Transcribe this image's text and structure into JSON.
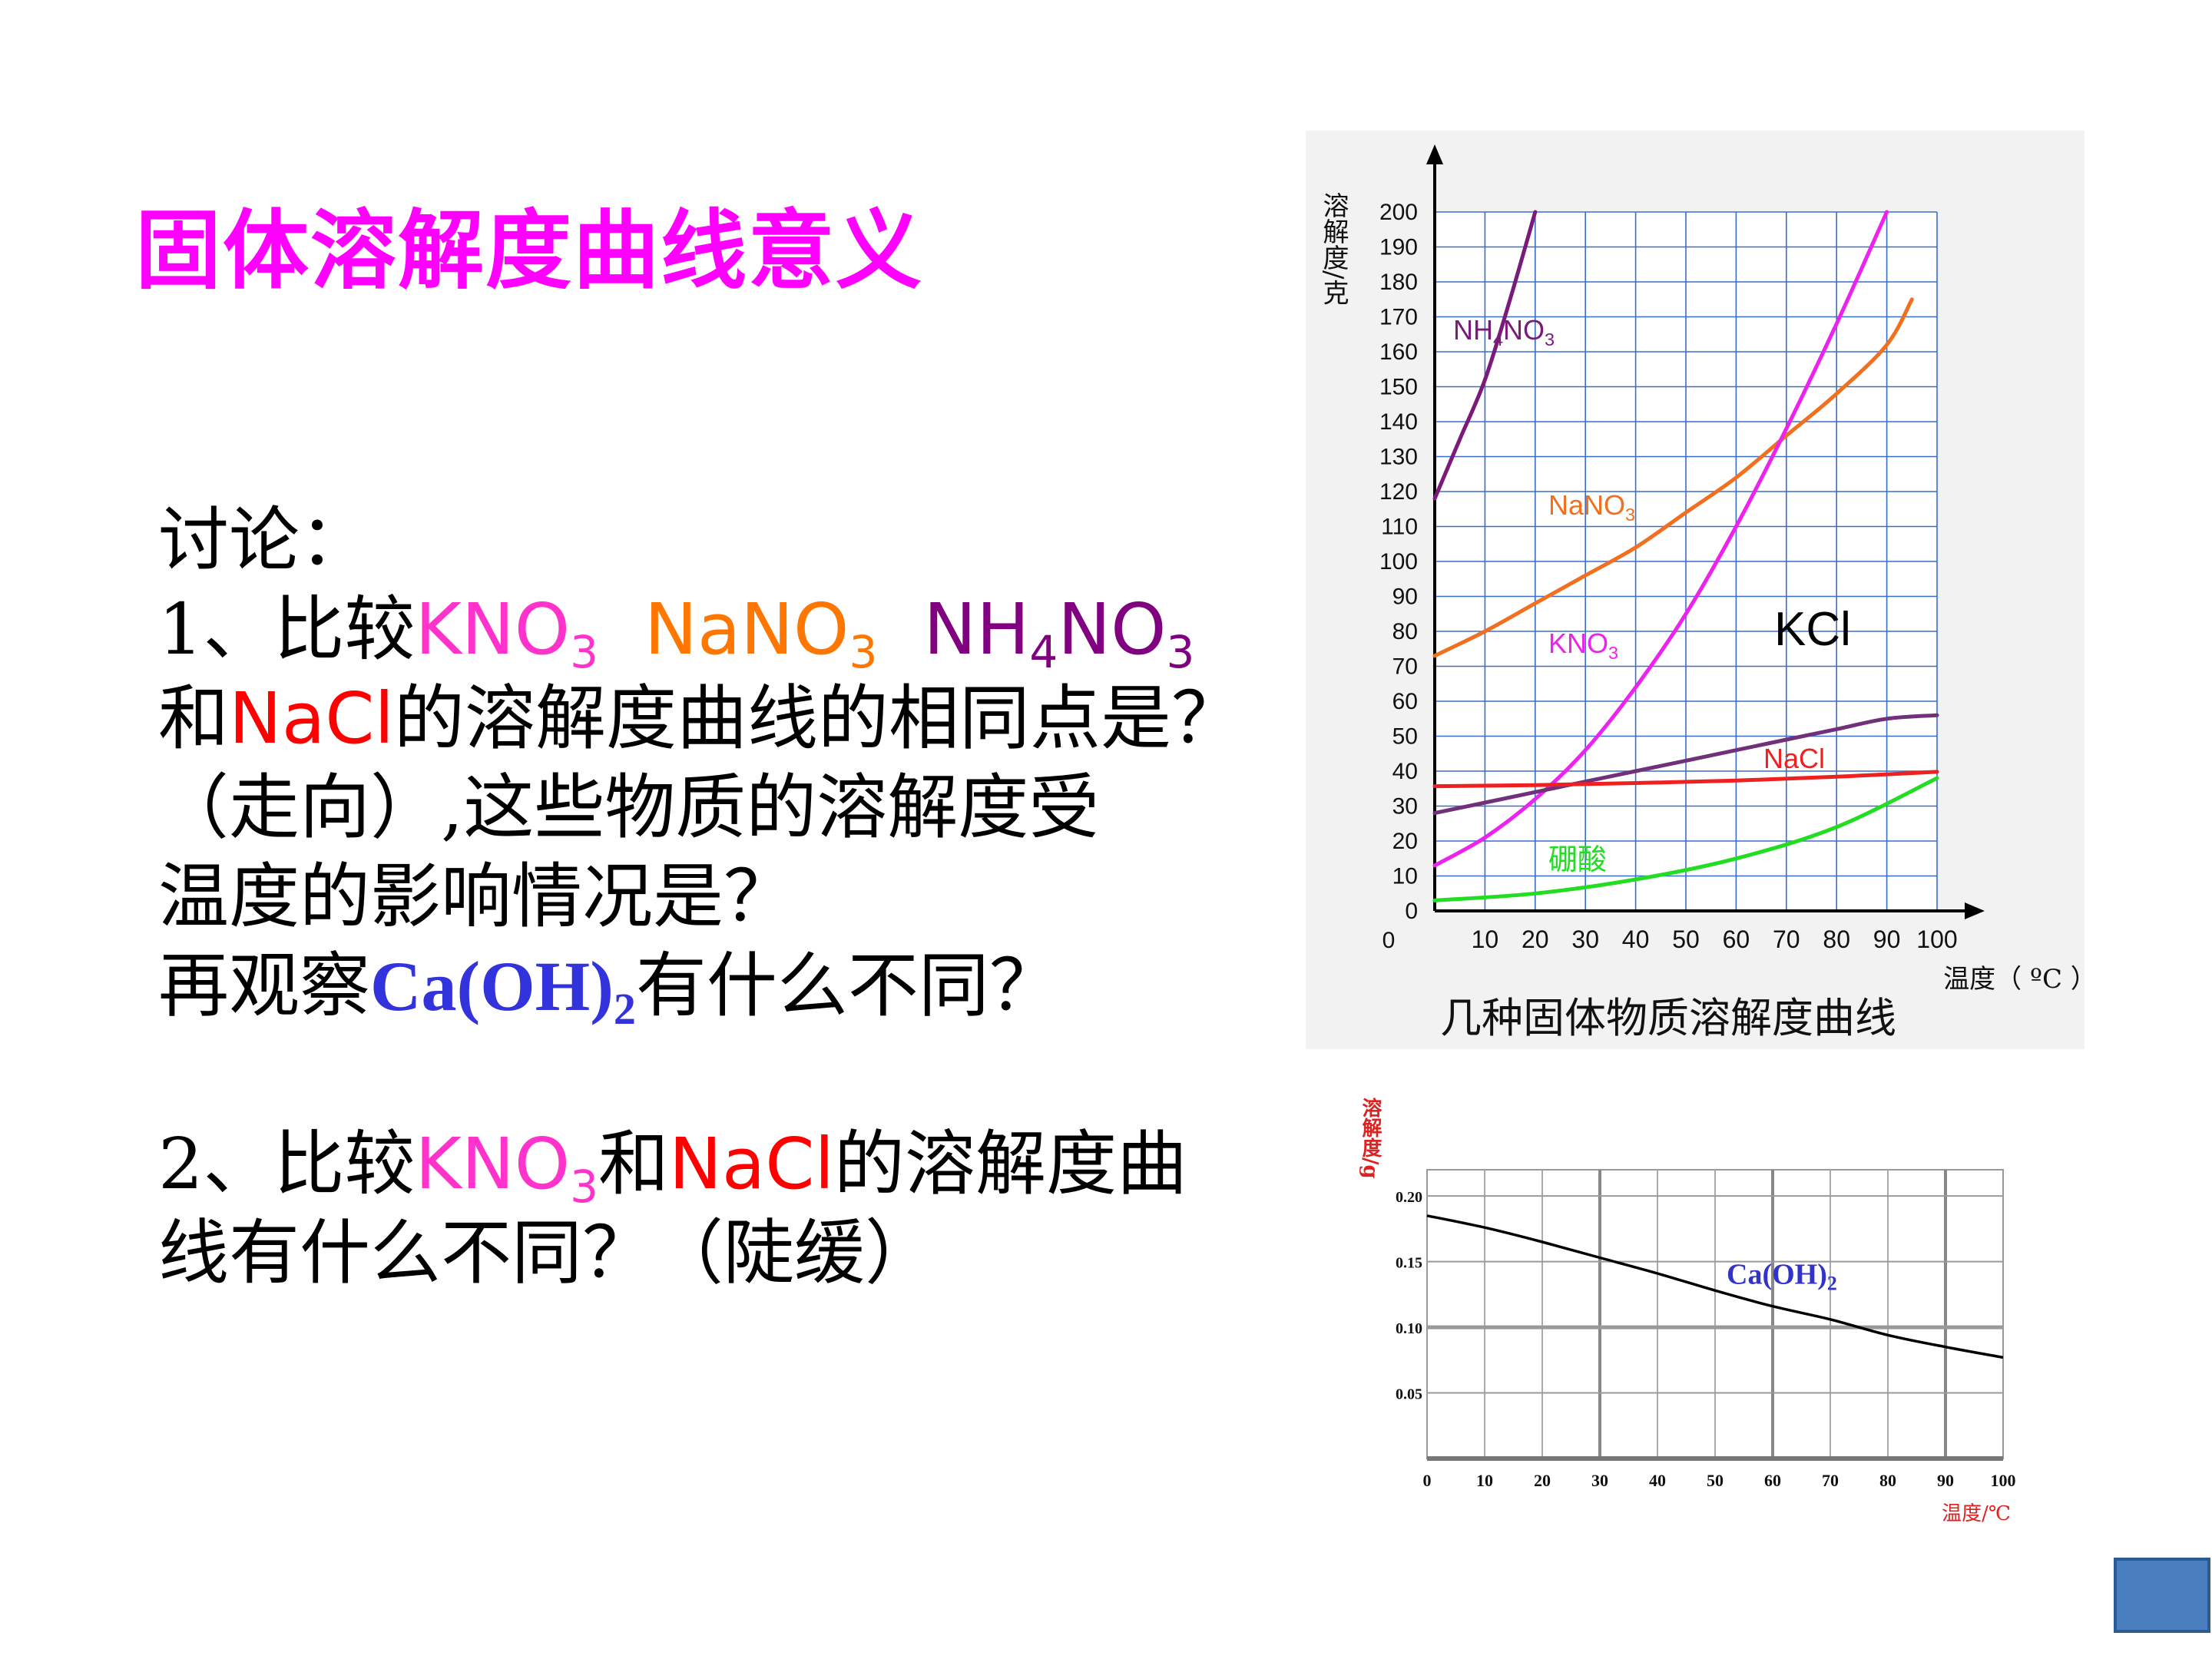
{
  "slide": {
    "title": "固体溶解度曲线意义",
    "discussion": {
      "heading": "讨论：",
      "q1_prefix": "1、比较",
      "q1_kno3": "KNO",
      "q1_nano3": "NaNO",
      "q1_nh4no3_a": "NH",
      "q1_nh4no3_b": "NO",
      "sub3": "3",
      "sub4": "4",
      "sub2": "2",
      "q1_and": "和",
      "q1_nacl": "NaCl",
      "q1_rest1": "的溶解度曲线的相同点是？",
      "q1_rest2": "（走向）,这些物质的溶解度受",
      "q1_rest3": "温度的影响情况是？",
      "q1_obs_prefix": "再观察",
      "q1_caoh": "Ca(OH)",
      "q1_obs_suffix": "有什么不同？",
      "q2_prefix": "2、比较",
      "q2_kno3": "KNO",
      "q2_and": "和",
      "q2_nacl": "NaCl",
      "q2_rest1": "的溶解度曲",
      "q2_rest2": "线有什么不同？（陡缓）"
    }
  },
  "chart_data": [
    {
      "type": "line",
      "title": "几种固体物质溶解度曲线",
      "ylabel": "溶解度/克",
      "xlabel": "温度（ ºC ）",
      "xlim": [
        0,
        100
      ],
      "ylim": [
        0,
        200
      ],
      "x_ticks": [
        10,
        20,
        30,
        40,
        50,
        60,
        70,
        80,
        90,
        100
      ],
      "x_tick_labels": [
        "10",
        "20",
        "30",
        "40",
        "50",
        "60",
        "70",
        "80",
        "90",
        "100"
      ],
      "y_ticks": [
        0,
        10,
        20,
        30,
        40,
        50,
        60,
        70,
        80,
        90,
        100,
        110,
        120,
        130,
        140,
        150,
        160,
        170,
        180,
        190,
        200
      ],
      "y_tick_labels": [
        "0",
        "10",
        "20",
        "30",
        "40",
        "50",
        "60",
        "70",
        "80",
        "90",
        "100",
        "110",
        "120",
        "130",
        "140",
        "150",
        "160",
        "170",
        "180",
        "190",
        "200"
      ],
      "grid": true,
      "series": [
        {
          "name": "NH4NO3",
          "label": "NH",
          "label_sub": "4",
          "label_b": "NO",
          "label_sub2": "3",
          "color": "#7a1a7a",
          "x": [
            0,
            5,
            10,
            15,
            20
          ],
          "y": [
            118,
            135,
            152,
            175,
            200
          ]
        },
        {
          "name": "NaNO3",
          "label": "NaNO",
          "label_sub": "3",
          "color": "#f07020",
          "x": [
            0,
            10,
            20,
            30,
            40,
            50,
            60,
            70,
            80,
            90,
            95
          ],
          "y": [
            73,
            80,
            88,
            96,
            104,
            114,
            124,
            136,
            148,
            162,
            175
          ]
        },
        {
          "name": "KNO3",
          "label": "KNO",
          "label_sub": "3",
          "color": "#ee22ee",
          "x": [
            0,
            10,
            20,
            30,
            40,
            50,
            60,
            70,
            80,
            90
          ],
          "y": [
            13,
            21,
            32,
            46,
            64,
            85,
            110,
            138,
            168,
            200
          ]
        },
        {
          "name": "KCl",
          "label": "KCl",
          "label_sub": "",
          "color": "#70307a",
          "x": [
            0,
            10,
            20,
            30,
            40,
            50,
            60,
            70,
            80,
            90,
            100
          ],
          "y": [
            28,
            31,
            34,
            37,
            40,
            43,
            46,
            49,
            52,
            55,
            56
          ]
        },
        {
          "name": "NaCl",
          "label": "NaCl",
          "label_sub": "",
          "color": "#ee2020",
          "x": [
            0,
            20,
            40,
            60,
            80,
            100
          ],
          "y": [
            35.7,
            36,
            36.6,
            37.3,
            38.4,
            39.8
          ]
        },
        {
          "name": "硼酸",
          "label": "硼酸",
          "label_sub": "",
          "color": "#22dd22",
          "x": [
            0,
            20,
            40,
            60,
            80,
            100
          ],
          "y": [
            3,
            5,
            9,
            15,
            24,
            38
          ]
        }
      ]
    },
    {
      "type": "line",
      "ylabel": "溶解度/g",
      "xlabel": "温度/℃",
      "xlim": [
        0,
        100
      ],
      "ylim": [
        0,
        0.22
      ],
      "x_ticks": [
        0,
        10,
        20,
        30,
        40,
        50,
        60,
        70,
        80,
        90,
        100
      ],
      "x_tick_labels": [
        "0",
        "10",
        "20",
        "30",
        "40",
        "50",
        "60",
        "70",
        "80",
        "90",
        "100"
      ],
      "y_ticks": [
        0.05,
        0.1,
        0.15,
        0.2
      ],
      "y_tick_labels": [
        "0.05",
        "0.10",
        "0.15",
        "0.20"
      ],
      "grid": true,
      "series": [
        {
          "name": "Ca(OH)2",
          "label": "Ca(OH)",
          "label_sub": "2",
          "color": "#000000",
          "x": [
            0,
            10,
            20,
            30,
            40,
            50,
            60,
            70,
            80,
            90,
            100
          ],
          "y": [
            0.185,
            0.176,
            0.165,
            0.153,
            0.141,
            0.128,
            0.116,
            0.106,
            0.094,
            0.085,
            0.077
          ]
        }
      ]
    }
  ]
}
